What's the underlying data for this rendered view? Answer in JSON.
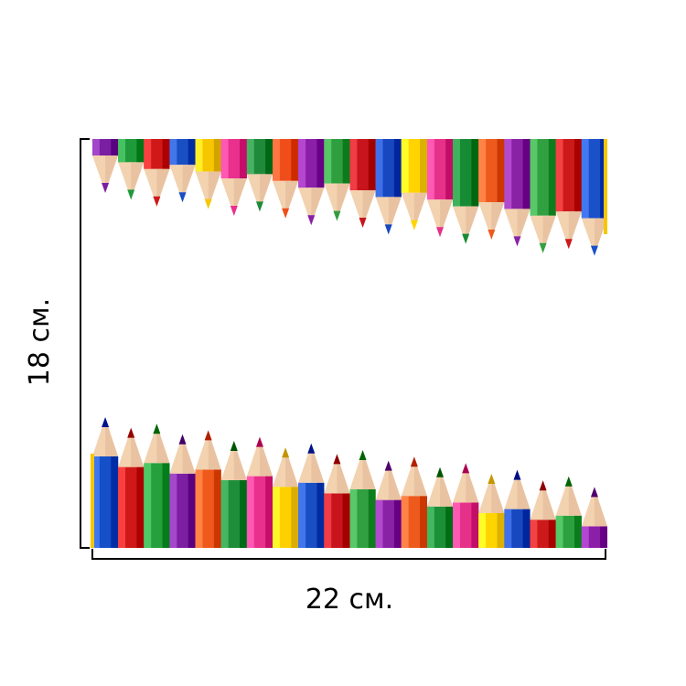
{
  "dimensions": {
    "width_label": "22 см.",
    "height_label": "18 см."
  },
  "pencil_colors": [
    "#7b1fa2",
    "#1e9a3a",
    "#d01818",
    "#1a4fc4",
    "#f6c600",
    "#e8308c",
    "#1f8a3a",
    "#ef4e1b",
    "#8b1fa8",
    "#2e9e3e",
    "#c8141c",
    "#1848c0",
    "#ffd400",
    "#e6318b",
    "#178a34",
    "#ee5a1e",
    "#8a22a6",
    "#30a040",
    "#cc1a1a",
    "#1a50c8"
  ],
  "bottom_pencil_colors": [
    "#1650c8",
    "#d01818",
    "#25a03c",
    "#7d1fa2",
    "#ef5a1c",
    "#1e8e3a",
    "#e8308c",
    "#ffd000",
    "#1a4ec4",
    "#c8141c",
    "#30a040",
    "#8a22a6",
    "#ee5a1e",
    "#1c9038",
    "#e6318b",
    "#ffd400",
    "#1848c0",
    "#cc1a1a",
    "#2ca03e",
    "#8b1fa8"
  ],
  "wood_color": "#f3d2b0",
  "wood_shade": "#d8a886",
  "border_color": "#000000",
  "icons": [
    "pencil-icon"
  ]
}
